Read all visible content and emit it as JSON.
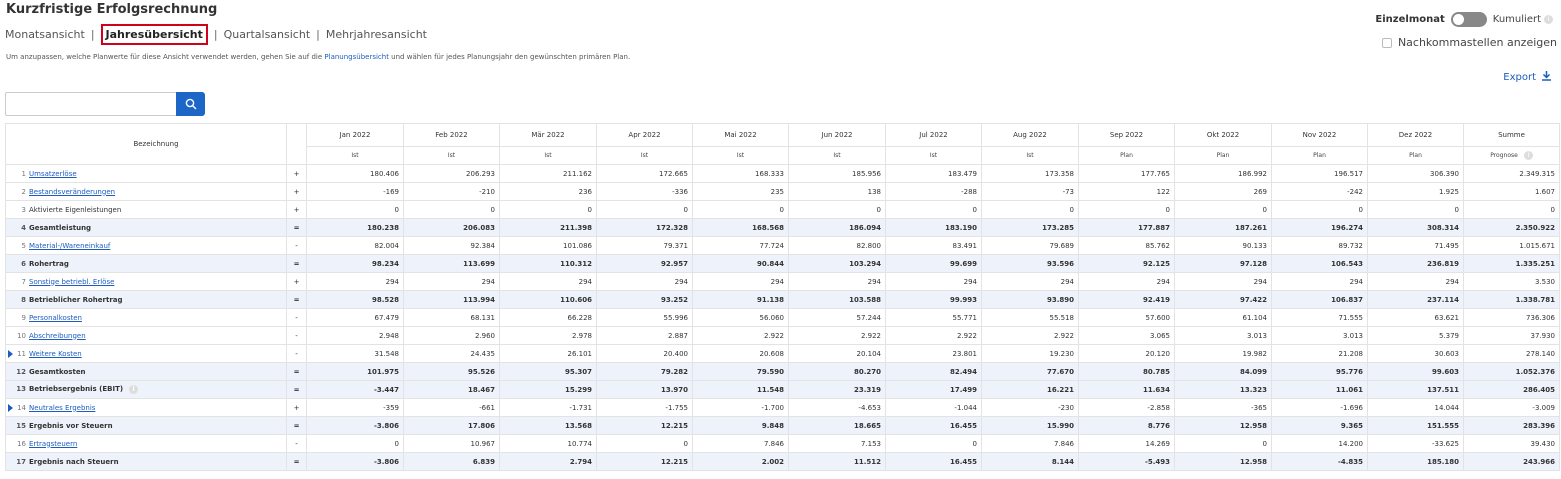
{
  "title": "Kurzfristige Erfolgsrechnung",
  "views": [
    {
      "label": "Monatsansicht",
      "active": false
    },
    {
      "label": "Jahresübersicht",
      "active": true
    },
    {
      "label": "Quartalsansicht",
      "active": false
    },
    {
      "label": "Mehrjahresansicht",
      "active": false
    }
  ],
  "hint": {
    "before": "Um anzupassen, welche Planwerte für diese Ansicht verwendet werden, gehen Sie auf die ",
    "link": "Planungsübersicht",
    "after": " und wählen für jedes Planungsjahr den gewünschten primären Plan."
  },
  "toggle": {
    "left": "Einzelmonat",
    "right": "Kumuliert",
    "state": "Einzelmonat"
  },
  "decimals": {
    "label": "Nachkommastellen anzeigen",
    "checked": false
  },
  "export": {
    "label": "Export"
  },
  "search": {
    "value": "",
    "placeholder": ""
  },
  "table": {
    "name_header": "Bezeichnung",
    "columns": [
      {
        "label": "Jan 2022",
        "sub": "Ist"
      },
      {
        "label": "Feb 2022",
        "sub": "Ist"
      },
      {
        "label": "Mär 2022",
        "sub": "Ist"
      },
      {
        "label": "Apr 2022",
        "sub": "Ist"
      },
      {
        "label": "Mai 2022",
        "sub": "Ist"
      },
      {
        "label": "Jun 2022",
        "sub": "Ist"
      },
      {
        "label": "Jul 2022",
        "sub": "Ist"
      },
      {
        "label": "Aug 2022",
        "sub": "Ist"
      },
      {
        "label": "Sep 2022",
        "sub": "Plan"
      },
      {
        "label": "Okt 2022",
        "sub": "Plan"
      },
      {
        "label": "Nov 2022",
        "sub": "Plan"
      },
      {
        "label": "Dez 2022",
        "sub": "Plan"
      },
      {
        "label": "Summe",
        "sub": "Prognose"
      }
    ],
    "rows": [
      {
        "idx": "1",
        "name": "Umsatzerlöse",
        "link": true,
        "op": "+",
        "sum": false,
        "expand": false,
        "values": [
          "180.406",
          "206.293",
          "211.162",
          "172.665",
          "168.333",
          "185.956",
          "183.479",
          "173.358",
          "177.765",
          "186.992",
          "196.517",
          "306.390",
          "2.349.315"
        ]
      },
      {
        "idx": "2",
        "name": "Bestandsveränderungen",
        "link": true,
        "op": "+",
        "sum": false,
        "expand": false,
        "values": [
          "-169",
          "-210",
          "236",
          "-336",
          "235",
          "138",
          "-288",
          "-73",
          "122",
          "269",
          "-242",
          "1.925",
          "1.607"
        ]
      },
      {
        "idx": "3",
        "name": "Aktivierte Eigenleistungen",
        "link": false,
        "op": "+",
        "sum": false,
        "expand": false,
        "values": [
          "0",
          "0",
          "0",
          "0",
          "0",
          "0",
          "0",
          "0",
          "0",
          "0",
          "0",
          "0",
          "0"
        ]
      },
      {
        "idx": "4",
        "name": "Gesamtleistung",
        "link": false,
        "op": "=",
        "sum": true,
        "expand": false,
        "values": [
          "180.238",
          "206.083",
          "211.398",
          "172.328",
          "168.568",
          "186.094",
          "183.190",
          "173.285",
          "177.887",
          "187.261",
          "196.274",
          "308.314",
          "2.350.922"
        ]
      },
      {
        "idx": "5",
        "name": "Material-/Wareneinkauf",
        "link": true,
        "op": "-",
        "sum": false,
        "expand": false,
        "values": [
          "82.004",
          "92.384",
          "101.086",
          "79.371",
          "77.724",
          "82.800",
          "83.491",
          "79.689",
          "85.762",
          "90.133",
          "89.732",
          "71.495",
          "1.015.671"
        ]
      },
      {
        "idx": "6",
        "name": "Rohertrag",
        "link": false,
        "op": "=",
        "sum": true,
        "expand": false,
        "values": [
          "98.234",
          "113.699",
          "110.312",
          "92.957",
          "90.844",
          "103.294",
          "99.699",
          "93.596",
          "92.125",
          "97.128",
          "106.543",
          "236.819",
          "1.335.251"
        ]
      },
      {
        "idx": "7",
        "name": "Sonstige betriebl. Erlöse",
        "link": true,
        "op": "+",
        "sum": false,
        "expand": false,
        "values": [
          "294",
          "294",
          "294",
          "294",
          "294",
          "294",
          "294",
          "294",
          "294",
          "294",
          "294",
          "294",
          "3.530"
        ]
      },
      {
        "idx": "8",
        "name": "Betrieblicher Rohertrag",
        "link": false,
        "op": "=",
        "sum": true,
        "expand": false,
        "values": [
          "98.528",
          "113.994",
          "110.606",
          "93.252",
          "91.138",
          "103.588",
          "99.993",
          "93.890",
          "92.419",
          "97.422",
          "106.837",
          "237.114",
          "1.338.781"
        ]
      },
      {
        "idx": "9",
        "name": "Personalkosten",
        "link": true,
        "op": "-",
        "sum": false,
        "expand": false,
        "values": [
          "67.479",
          "68.131",
          "66.228",
          "55.996",
          "56.060",
          "57.244",
          "55.771",
          "55.518",
          "57.600",
          "61.104",
          "71.555",
          "63.621",
          "736.306"
        ]
      },
      {
        "idx": "10",
        "name": "Abschreibungen",
        "link": true,
        "op": "-",
        "sum": false,
        "expand": false,
        "values": [
          "2.948",
          "2.960",
          "2.978",
          "2.887",
          "2.922",
          "2.922",
          "2.922",
          "2.922",
          "3.065",
          "3.013",
          "3.013",
          "5.379",
          "37.930"
        ]
      },
      {
        "idx": "11",
        "name": "Weitere Kosten",
        "link": true,
        "op": "-",
        "sum": false,
        "expand": true,
        "values": [
          "31.548",
          "24.435",
          "26.101",
          "20.400",
          "20.608",
          "20.104",
          "23.801",
          "19.230",
          "20.120",
          "19.982",
          "21.208",
          "30.603",
          "278.140"
        ]
      },
      {
        "idx": "12",
        "name": "Gesamtkosten",
        "link": false,
        "op": "=",
        "sum": true,
        "expand": false,
        "values": [
          "101.975",
          "95.526",
          "95.307",
          "79.282",
          "79.590",
          "80.270",
          "82.494",
          "77.670",
          "80.785",
          "84.099",
          "95.776",
          "99.603",
          "1.052.376"
        ]
      },
      {
        "idx": "13",
        "name": "Betriebsergebnis (EBIT)",
        "link": false,
        "op": "=",
        "sum": true,
        "expand": false,
        "info": true,
        "values": [
          "-3.447",
          "18.467",
          "15.299",
          "13.970",
          "11.548",
          "23.319",
          "17.499",
          "16.221",
          "11.634",
          "13.323",
          "11.061",
          "137.511",
          "286.405"
        ]
      },
      {
        "idx": "14",
        "name": "Neutrales Ergebnis",
        "link": true,
        "op": "+",
        "sum": false,
        "expand": true,
        "values": [
          "-359",
          "-661",
          "-1.731",
          "-1.755",
          "-1.700",
          "-4.653",
          "-1.044",
          "-230",
          "-2.858",
          "-365",
          "-1.696",
          "14.044",
          "-3.009"
        ]
      },
      {
        "idx": "15",
        "name": "Ergebnis vor Steuern",
        "link": false,
        "op": "=",
        "sum": true,
        "expand": false,
        "values": [
          "-3.806",
          "17.806",
          "13.568",
          "12.215",
          "9.848",
          "18.665",
          "16.455",
          "15.990",
          "8.776",
          "12.958",
          "9.365",
          "151.555",
          "283.396"
        ]
      },
      {
        "idx": "16",
        "name": "Ertragsteuern",
        "link": true,
        "op": "-",
        "sum": false,
        "expand": false,
        "values": [
          "0",
          "10.967",
          "10.774",
          "0",
          "7.846",
          "7.153",
          "0",
          "7.846",
          "14.269",
          "0",
          "14.200",
          "-33.625",
          "39.430"
        ]
      },
      {
        "idx": "17",
        "name": "Ergebnis nach Steuern",
        "link": false,
        "op": "=",
        "sum": true,
        "expand": false,
        "values": [
          "-3.806",
          "6.839",
          "2.794",
          "12.215",
          "2.002",
          "11.512",
          "16.455",
          "8.144",
          "-5.493",
          "12.958",
          "-4.835",
          "185.180",
          "243.966"
        ]
      }
    ]
  },
  "colors": {
    "accent": "#1c66c7",
    "link": "#1c5dbf",
    "highlight_border": "#d0021b",
    "sum_row_bg": "#eef2fa"
  },
  "icons": {
    "search": "search-icon",
    "export": "download-icon",
    "info": "info-icon",
    "expand": "expand-triangle-icon"
  }
}
